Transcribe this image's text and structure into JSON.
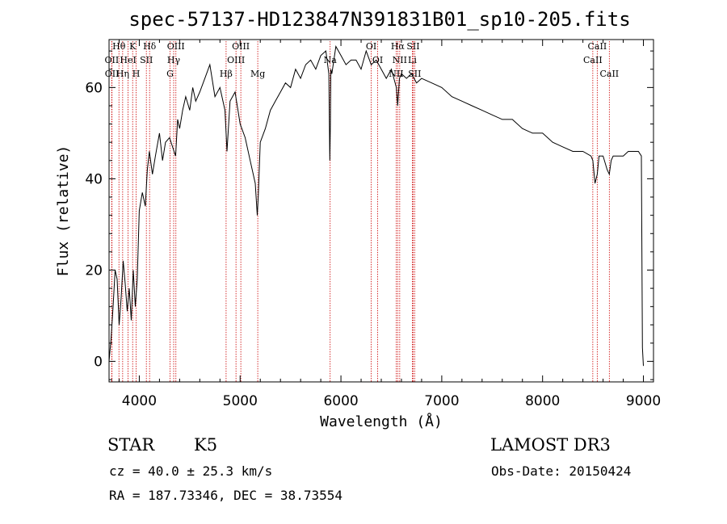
{
  "chart_data": {
    "type": "line",
    "title": "spec-57137-HD123847N391831B01_sp10-205.fits",
    "xlabel": "Wavelength (Å)",
    "ylabel": "Flux (relative)",
    "xlim": [
      3700,
      9100
    ],
    "ylim": [
      -4.5,
      70.5
    ],
    "xticks": [
      4000,
      5000,
      6000,
      7000,
      8000,
      9000
    ],
    "yticks": [
      0,
      20,
      40,
      60
    ],
    "series": [
      {
        "name": "flux",
        "x": [
          3700,
          3720,
          3740,
          3760,
          3780,
          3800,
          3820,
          3840,
          3860,
          3880,
          3900,
          3920,
          3940,
          3960,
          3980,
          4000,
          4030,
          4060,
          4080,
          4100,
          4130,
          4160,
          4200,
          4230,
          4260,
          4300,
          4330,
          4360,
          4380,
          4400,
          4430,
          4460,
          4500,
          4530,
          4560,
          4600,
          4650,
          4700,
          4750,
          4800,
          4850,
          4870,
          4900,
          4950,
          5000,
          5050,
          5100,
          5150,
          5170,
          5180,
          5200,
          5250,
          5300,
          5350,
          5400,
          5450,
          5500,
          5550,
          5600,
          5650,
          5700,
          5750,
          5800,
          5850,
          5880,
          5890,
          5895,
          5900,
          5910,
          5950,
          6000,
          6050,
          6100,
          6150,
          6200,
          6250,
          6300,
          6350,
          6400,
          6450,
          6500,
          6550,
          6563,
          6580,
          6600,
          6650,
          6700,
          6750,
          6800,
          6900,
          7000,
          7100,
          7200,
          7300,
          7400,
          7500,
          7600,
          7700,
          7800,
          7900,
          8000,
          8100,
          8200,
          8300,
          8400,
          8480,
          8498,
          8520,
          8542,
          8560,
          8600,
          8640,
          8662,
          8680,
          8700,
          8750,
          8800,
          8850,
          8900,
          8950,
          8980,
          8990,
          9000
        ],
        "values": [
          0,
          5,
          12,
          20,
          18,
          8,
          14,
          22,
          17,
          11,
          16,
          9,
          20,
          12,
          18,
          33,
          37,
          34,
          42,
          46,
          41,
          45,
          50,
          44,
          48,
          49,
          47,
          45,
          53,
          51,
          55,
          58,
          55,
          60,
          57,
          59,
          62,
          65,
          58,
          60,
          55,
          46,
          57,
          59,
          52,
          49,
          44,
          39,
          32,
          36,
          48,
          51,
          55,
          57,
          59,
          61,
          60,
          64,
          62,
          65,
          66,
          64,
          67,
          68,
          63,
          44,
          52,
          64,
          63,
          69,
          67,
          65,
          66,
          66,
          64,
          68,
          65,
          66,
          64,
          62,
          64,
          60,
          56,
          62,
          63,
          62,
          63,
          61,
          62,
          61,
          60,
          58,
          57,
          56,
          55,
          54,
          53,
          53,
          51,
          50,
          50,
          48,
          47,
          46,
          46,
          45,
          44,
          39,
          41,
          45,
          45,
          42,
          41,
          44,
          45,
          45,
          45,
          46,
          46,
          46,
          45,
          3,
          -1
        ]
      }
    ],
    "emission_lines": [
      {
        "name": "Hθ",
        "wavelength": 3798,
        "row": 1
      },
      {
        "name": "OII",
        "wavelength": 3727,
        "row": 2
      },
      {
        "name": "OII",
        "wavelength": 3729,
        "row": 3
      },
      {
        "name": "Hη",
        "wavelength": 3835,
        "row": 3
      },
      {
        "name": "K",
        "wavelength": 3934,
        "row": 1
      },
      {
        "name": "HeI",
        "wavelength": 3889,
        "row": 2
      },
      {
        "name": "SII",
        "wavelength": 4070,
        "row": 2
      },
      {
        "name": "H",
        "wavelength": 3969,
        "row": 3
      },
      {
        "name": "Hδ",
        "wavelength": 4102,
        "row": 1
      },
      {
        "name": "OIII",
        "wavelength": 4363,
        "row": 1
      },
      {
        "name": "Hγ",
        "wavelength": 4341,
        "row": 2
      },
      {
        "name": "G",
        "wavelength": 4305,
        "row": 3
      },
      {
        "name": "OIII",
        "wavelength": 5007,
        "row": 1
      },
      {
        "name": "OIII",
        "wavelength": 4959,
        "row": 2
      },
      {
        "name": "Hβ",
        "wavelength": 4861,
        "row": 3
      },
      {
        "name": "Mg",
        "wavelength": 5175,
        "row": 3
      },
      {
        "name": "Na",
        "wavelength": 5893,
        "row": 2
      },
      {
        "name": "OI",
        "wavelength": 6300,
        "row": 1
      },
      {
        "name": "OI",
        "wavelength": 6364,
        "row": 2
      },
      {
        "name": "Hα",
        "wavelength": 6563,
        "row": 1
      },
      {
        "name": "NII",
        "wavelength": 6583,
        "row": 2
      },
      {
        "name": "NII",
        "wavelength": 6548,
        "row": 3
      },
      {
        "name": "SII",
        "wavelength": 6716,
        "row": 1
      },
      {
        "name": "Li",
        "wavelength": 6708,
        "row": 2
      },
      {
        "name": "SII",
        "wavelength": 6731,
        "row": 3
      },
      {
        "name": "CaII",
        "wavelength": 8542,
        "row": 1
      },
      {
        "name": "CaII",
        "wavelength": 8498,
        "row": 2
      },
      {
        "name": "CaII",
        "wavelength": 8662,
        "row": 3
      }
    ],
    "colors": {
      "spectrum": "#000000",
      "lines": "#cc0000",
      "axes": "#000000"
    }
  },
  "info": {
    "object_type": "STAR",
    "subclass": "K5",
    "survey": "LAMOST DR3",
    "redshift_line": "cz = 40.0 ± 25.3 km/s",
    "obs_date": "Obs-Date: 20150424",
    "coords": "RA = 187.73346, DEC =  38.73554"
  }
}
